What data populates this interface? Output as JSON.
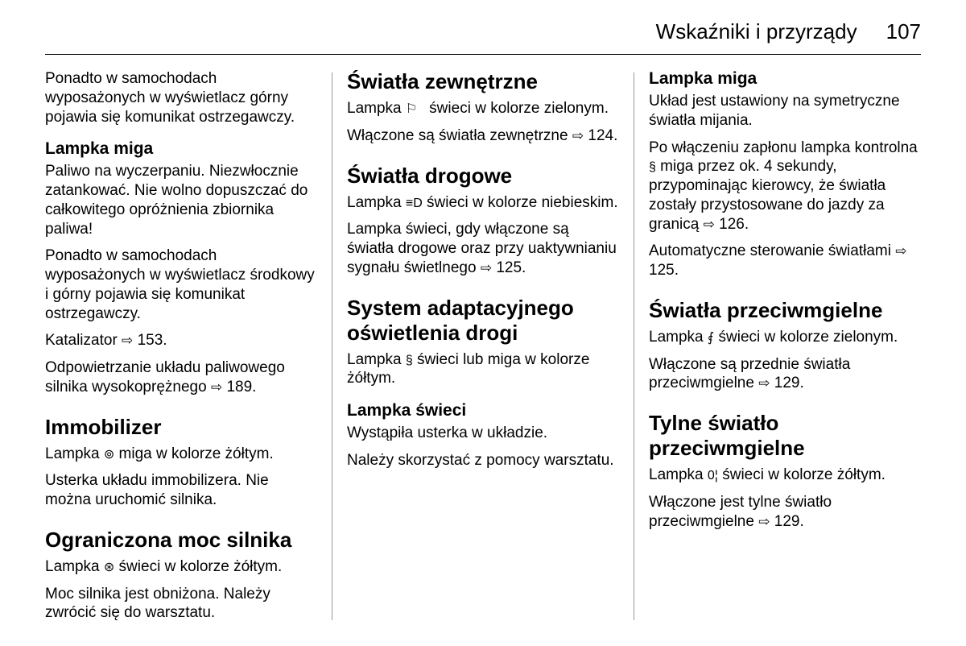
{
  "header": {
    "section_title": "Wskaźniki i przyrządy",
    "page_number": "107"
  },
  "icons": {
    "ref_arrow": "⇨",
    "exterior_lights": "⚐",
    "high_beam": "≡D",
    "adaptive_light": "§",
    "immobilizer": "⊚",
    "engine_power": "⊛",
    "fog_front": "⨐",
    "fog_rear": "0¦"
  },
  "col1": {
    "p1": "Ponadto w samochodach wyposażonych w wyświetlacz górny pojawia się komunikat ostrzegawczy.",
    "h_lampka_miga": "Lampka miga",
    "p2": "Paliwo na wyczerpaniu. Niezwłocznie zatankować. Nie wolno dopuszczać do całkowitego opróżnienia zbiornika paliwa!",
    "p3": "Ponadto w samochodach wyposażonych w wyświetlacz środkowy i górny pojawia się komunikat ostrzegawczy.",
    "p4_pre": "Katalizator ",
    "p4_ref": "153.",
    "p5_pre": "Odpowietrzanie układu paliwowego silnika wysokoprężnego ",
    "p5_ref": "189.",
    "h_immobilizer": "Immobilizer",
    "p6_pre": "Lampka ",
    "p6_post": " miga w kolorze żółtym.",
    "p7": "Usterka układu immobilizera. Nie można uruchomić silnika.",
    "h_ogr_moc": "Ograniczona moc silnika",
    "p8_pre": "Lampka ",
    "p8_post": " świeci w kolorze żółtym.",
    "p9": "Moc silnika jest obniżona. Należy zwrócić się do warsztatu."
  },
  "col2": {
    "h_swiatla_zew": "Światła zewnętrzne",
    "p1_pre": "Lampka ",
    "p1_post": " świeci w kolorze zielonym.",
    "p2_pre": "Włączone są światła zewnętrzne ",
    "p2_ref": "124.",
    "h_swiatla_drog": "Światła drogowe",
    "p3_pre": "Lampka ",
    "p3_post": " świeci w kolorze niebieskim.",
    "p4_pre": "Lampka świeci, gdy włączone są światła drogowe oraz przy uaktywnianiu sygnału świetlnego ",
    "p4_ref": "125.",
    "h_system_adapt": "System adaptacyjnego oświetlenia drogi",
    "p5_pre": "Lampka ",
    "p5_post": " świeci lub miga w kolorze żółtym.",
    "h_lampka_swieci": "Lampka świeci",
    "p6": "Wystąpiła usterka w układzie.",
    "p7": "Należy skorzystać z pomocy warsztatu."
  },
  "col3": {
    "h_lampka_miga": "Lampka miga",
    "p1": "Układ jest ustawiony na symetryczne światła mijania.",
    "p2_pre": "Po włączeniu zapłonu lampka kontrolna ",
    "p2_mid": " miga przez ok. 4 sekundy, przypominając kierowcy, że światła zostały przystosowane do jazdy za granicą ",
    "p2_ref": "126.",
    "p3_pre": "Automatyczne sterowanie światłami ",
    "p3_ref": "125.",
    "h_swiatla_przeciw": "Światła przeciwmgielne",
    "p4_pre": "Lampka ",
    "p4_post": " świeci w kolorze zielonym.",
    "p5_pre": "Włączone są przednie światła przeciwmgielne ",
    "p5_ref": "129.",
    "h_tylne": "Tylne światło przeciwmgielne",
    "p6_pre": "Lampka ",
    "p6_post": " świeci w kolorze żółtym.",
    "p7_pre": "Włączone jest tylne światło przeciwmgielne ",
    "p7_ref": "129."
  }
}
